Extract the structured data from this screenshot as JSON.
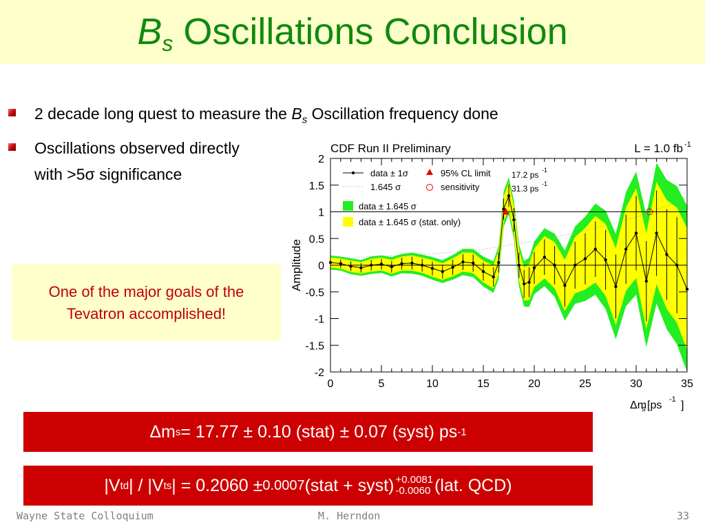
{
  "slide": {
    "title_symbol": "B",
    "title_sub": "s",
    "title_rest": " Oscillations Conclusion",
    "bullets": [
      {
        "pre": "2 decade long quest to measure the ",
        "sym": "B",
        "sub": "s",
        "post": " Oscillation frequency done"
      },
      {
        "line1": "Oscillations observed directly",
        "line2": "with >5σ significance"
      }
    ],
    "callout": {
      "line1": "One of the major goals of the",
      "line2": "Tevatron accomplished!"
    },
    "result1": {
      "delta": "Δm",
      "sub": "s",
      "text": " = 17.77 ± 0.10 (stat) ± 0.07 (syst) ps",
      "sup": "-1"
    },
    "result2": {
      "pre": "|V",
      "sub1": "td",
      "mid": "| / |V",
      "sub2": "ts",
      "text": "| = 0.2060 ± ",
      "small": "0.0007",
      "text2": " (stat + syst) ",
      "up": "+0.0081",
      "down": "-0.0060",
      "post": "(lat. QCD)"
    },
    "footer": {
      "left": "Wayne State Colloquium",
      "center": "M. Herndon",
      "right": "33"
    }
  },
  "colors": {
    "title": "#0f8a0f",
    "accent_red": "#cc0000",
    "title_bg": "#ffffcc",
    "band_outer": "#22ee22",
    "band_inner": "#ffff00"
  },
  "chart_data": {
    "type": "line",
    "title": "CDF Run II Preliminary",
    "lumi": "L = 1.0 fb",
    "lumi_sup": "-1",
    "ylabel": "Amplitude",
    "xlabel": "Δm",
    "xlabel_sub": "s",
    "xlabel_unit": " [ps",
    "xlabel_sup": "-1",
    "xlabel_end": "]",
    "xlim": [
      0,
      35
    ],
    "ylim": [
      -2,
      2
    ],
    "xticks": [
      "0",
      "5",
      "10",
      "15",
      "20",
      "25",
      "30",
      "35"
    ],
    "yticks": [
      "2",
      "1.5",
      "1",
      "0.5",
      "0",
      "-0.5",
      "-1",
      "-1.5",
      "-2"
    ],
    "legend": {
      "data": "data ± 1σ",
      "sigma": "1.645 σ",
      "cl": "95% CL limit",
      "cl_value": "17.2 ps",
      "sens": "sensitivity",
      "sens_value": "31.3 ps",
      "sup": "-1",
      "green": "data ± 1.645 σ",
      "yellow": "data ± 1.645 σ (stat. only)"
    },
    "cl_limit": 17.2,
    "sensitivity": 31.3,
    "data": {
      "x": [
        0,
        1,
        2,
        3,
        4,
        5,
        6,
        7,
        8,
        9,
        10,
        11,
        12,
        13,
        14,
        15,
        16,
        16.5,
        17,
        17.5,
        18,
        18.5,
        19,
        19.5,
        20,
        21,
        22,
        23,
        24,
        25,
        26,
        27,
        28,
        29,
        30,
        31,
        32,
        33,
        34,
        35
      ],
      "y": [
        0.05,
        0.03,
        -0.02,
        -0.05,
        0.0,
        0.02,
        -0.03,
        0.03,
        0.04,
        0.0,
        -0.06,
        -0.12,
        -0.04,
        0.06,
        0.04,
        -0.12,
        -0.22,
        0.05,
        1.05,
        1.3,
        0.85,
        0.0,
        -0.35,
        -0.32,
        -0.05,
        0.15,
        0.0,
        -0.38,
        0.0,
        0.12,
        0.3,
        0.1,
        -0.4,
        0.3,
        0.6,
        -0.3,
        0.6,
        0.2,
        0.0,
        -0.45
      ],
      "err": [
        0.08,
        0.08,
        0.09,
        0.09,
        0.1,
        0.1,
        0.11,
        0.11,
        0.12,
        0.12,
        0.13,
        0.13,
        0.14,
        0.15,
        0.16,
        0.17,
        0.18,
        0.19,
        0.2,
        0.21,
        0.22,
        0.24,
        0.26,
        0.28,
        0.3,
        0.33,
        0.36,
        0.4,
        0.44,
        0.48,
        0.52,
        0.56,
        0.6,
        0.65,
        0.7,
        0.75,
        0.8,
        0.85,
        0.9,
        0.95
      ]
    },
    "sens_curve": {
      "x": [
        0,
        5,
        10,
        15,
        20,
        25,
        30,
        35
      ],
      "y": [
        0.13,
        0.17,
        0.21,
        0.3,
        0.45,
        0.65,
        0.9,
        1.25
      ]
    }
  }
}
